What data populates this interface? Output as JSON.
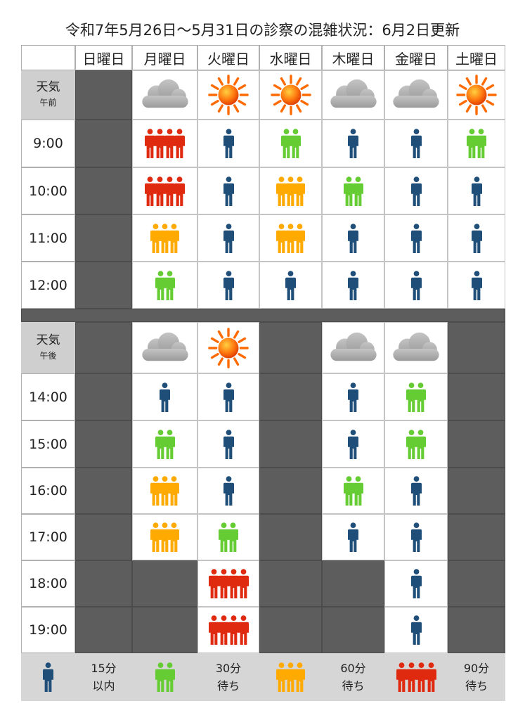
{
  "title": "令和7年5月26日～5月31日の診察の混雑状況：6月2日更新",
  "colors": {
    "blue": "#1f4e79",
    "green": "#66cc33",
    "orange": "#ffaa00",
    "red": "#e02a10",
    "closed": "#5d5d5d",
    "label_bg": "#cfcfcf",
    "cloud": "#a8a8a8",
    "sun": "#ff6a00"
  },
  "days": [
    "日曜日",
    "月曜日",
    "火曜日",
    "水曜日",
    "木曜日",
    "金曜日",
    "土曜日"
  ],
  "weather_label": "天気",
  "morning": {
    "period": "午前",
    "weather": [
      "closed",
      "cloud",
      "sun",
      "sun",
      "cloud",
      "cloud",
      "sun"
    ],
    "slots": [
      {
        "time": "9:00",
        "levels": [
          0,
          4,
          1,
          2,
          1,
          1,
          2
        ]
      },
      {
        "time": "10:00",
        "levels": [
          0,
          4,
          1,
          3,
          2,
          1,
          1
        ]
      },
      {
        "time": "11:00",
        "levels": [
          0,
          3,
          1,
          3,
          1,
          1,
          1
        ]
      },
      {
        "time": "12:00",
        "levels": [
          0,
          2,
          1,
          1,
          1,
          1,
          1
        ]
      }
    ]
  },
  "afternoon": {
    "period": "午後",
    "weather": [
      "closed",
      "cloud",
      "sun",
      "closed",
      "cloud",
      "cloud",
      "closed"
    ],
    "slots": [
      {
        "time": "14:00",
        "levels": [
          0,
          1,
          1,
          0,
          1,
          2,
          0
        ]
      },
      {
        "time": "15:00",
        "levels": [
          0,
          2,
          1,
          0,
          1,
          2,
          0
        ]
      },
      {
        "time": "16:00",
        "levels": [
          0,
          3,
          1,
          0,
          2,
          1,
          0
        ]
      },
      {
        "time": "17:00",
        "levels": [
          0,
          3,
          2,
          0,
          1,
          1,
          0
        ]
      },
      {
        "time": "18:00",
        "levels": [
          0,
          0,
          4,
          0,
          0,
          1,
          0
        ]
      },
      {
        "time": "19:00",
        "levels": [
          0,
          0,
          4,
          0,
          0,
          1,
          0
        ]
      }
    ]
  },
  "legend": [
    {
      "level": 1,
      "color": "blue",
      "text1": "15分",
      "text2": "以内"
    },
    {
      "level": 2,
      "color": "green",
      "text1": "30分",
      "text2": "待ち"
    },
    {
      "level": 3,
      "color": "orange",
      "text1": "60分",
      "text2": "待ち"
    },
    {
      "level": 4,
      "color": "red",
      "text1": "90分",
      "text2": "待ち"
    }
  ],
  "icons": {
    "person": "person-icon",
    "cloud": "cloud-icon",
    "sun": "sun-icon"
  }
}
